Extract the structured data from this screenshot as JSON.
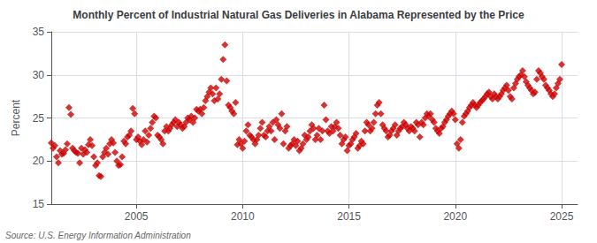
{
  "chart_data": {
    "type": "scatter",
    "title": "Monthly Percent of Industrial Natural Gas Deliveries in Alabama Represented by the Price",
    "ylabel": "Percent",
    "source": "Source: U.S. Energy Information Administration",
    "xlim": [
      2001.0,
      2025.75
    ],
    "xticks": [
      2005,
      2010,
      2015,
      2020,
      2025
    ],
    "ylim": [
      15,
      35
    ],
    "yticks": [
      15,
      20,
      25,
      30,
      35
    ],
    "grid": true,
    "color": "#cc0000",
    "marker": "diamond",
    "x": [
      2001.0,
      2001.083,
      2001.167,
      2001.25,
      2001.333,
      2001.417,
      2001.5,
      2001.583,
      2001.667,
      2001.75,
      2001.833,
      2001.917,
      2002.0,
      2002.083,
      2002.167,
      2002.25,
      2002.333,
      2002.417,
      2002.5,
      2002.583,
      2002.667,
      2002.75,
      2002.833,
      2002.917,
      2003.0,
      2003.083,
      2003.167,
      2003.25,
      2003.333,
      2003.417,
      2003.5,
      2003.583,
      2003.667,
      2003.75,
      2003.833,
      2003.917,
      2004.0,
      2004.083,
      2004.167,
      2004.25,
      2004.333,
      2004.417,
      2004.5,
      2004.583,
      2004.667,
      2004.75,
      2004.833,
      2004.917,
      2005.0,
      2005.083,
      2005.167,
      2005.25,
      2005.333,
      2005.417,
      2005.5,
      2005.583,
      2005.667,
      2005.75,
      2005.833,
      2005.917,
      2006.0,
      2006.083,
      2006.167,
      2006.25,
      2006.333,
      2006.417,
      2006.5,
      2006.583,
      2006.667,
      2006.75,
      2006.833,
      2006.917,
      2007.0,
      2007.083,
      2007.167,
      2007.25,
      2007.333,
      2007.417,
      2007.5,
      2007.583,
      2007.667,
      2007.75,
      2007.833,
      2007.917,
      2008.0,
      2008.083,
      2008.167,
      2008.25,
      2008.333,
      2008.417,
      2008.5,
      2008.583,
      2008.667,
      2008.75,
      2008.833,
      2008.917,
      2009.0,
      2009.083,
      2009.167,
      2009.25,
      2009.333,
      2009.417,
      2009.5,
      2009.583,
      2009.667,
      2009.75,
      2009.833,
      2009.917,
      2010.0,
      2010.083,
      2010.167,
      2010.25,
      2010.333,
      2010.417,
      2010.5,
      2010.583,
      2010.667,
      2010.75,
      2010.833,
      2010.917,
      2011.0,
      2011.083,
      2011.167,
      2011.25,
      2011.333,
      2011.417,
      2011.5,
      2011.583,
      2011.667,
      2011.75,
      2011.833,
      2011.917,
      2012.0,
      2012.083,
      2012.167,
      2012.25,
      2012.333,
      2012.417,
      2012.5,
      2012.583,
      2012.667,
      2012.75,
      2012.833,
      2012.917,
      2013.0,
      2013.083,
      2013.167,
      2013.25,
      2013.333,
      2013.417,
      2013.5,
      2013.583,
      2013.667,
      2013.75,
      2013.833,
      2013.917,
      2014.0,
      2014.083,
      2014.167,
      2014.25,
      2014.333,
      2014.417,
      2014.5,
      2014.583,
      2014.667,
      2014.75,
      2014.833,
      2014.917,
      2015.0,
      2015.083,
      2015.167,
      2015.25,
      2015.333,
      2015.417,
      2015.5,
      2015.583,
      2015.667,
      2015.75,
      2015.833,
      2015.917,
      2016.0,
      2016.083,
      2016.167,
      2016.25,
      2016.333,
      2016.417,
      2016.5,
      2016.583,
      2016.667,
      2016.75,
      2016.833,
      2016.917,
      2017.0,
      2017.083,
      2017.167,
      2017.25,
      2017.333,
      2017.417,
      2017.5,
      2017.583,
      2017.667,
      2017.75,
      2017.833,
      2017.917,
      2018.0,
      2018.083,
      2018.167,
      2018.25,
      2018.333,
      2018.417,
      2018.5,
      2018.583,
      2018.667,
      2018.75,
      2018.833,
      2018.917,
      2019.0,
      2019.083,
      2019.167,
      2019.25,
      2019.333,
      2019.417,
      2019.5,
      2019.583,
      2019.667,
      2019.75,
      2019.833,
      2019.917,
      2020.0,
      2020.083,
      2020.167,
      2020.25,
      2020.333,
      2020.417,
      2020.5,
      2020.583,
      2020.667,
      2020.75,
      2020.833,
      2020.917,
      2021.0,
      2021.083,
      2021.167,
      2021.25,
      2021.333,
      2021.417,
      2021.5,
      2021.583,
      2021.667,
      2021.75,
      2021.833,
      2021.917,
      2022.0,
      2022.083,
      2022.167,
      2022.25,
      2022.333,
      2022.417,
      2022.5,
      2022.583,
      2022.667,
      2022.75,
      2022.833,
      2022.917,
      2023.0,
      2023.083,
      2023.167,
      2023.25,
      2023.333,
      2023.417,
      2023.5,
      2023.583,
      2023.667,
      2023.75,
      2023.833,
      2023.917,
      2024.0,
      2024.083,
      2024.167,
      2024.25,
      2024.333,
      2024.417,
      2024.5,
      2024.583,
      2024.667,
      2024.75,
      2024.833,
      2024.917,
      2025.0
    ],
    "values": [
      22.1,
      21.5,
      21.8,
      20.5,
      19.8,
      21.2,
      20.8,
      20.9,
      21.3,
      22.0,
      26.2,
      25.4,
      21.5,
      21.2,
      21.0,
      20.9,
      19.8,
      21.5,
      20.8,
      21.3,
      21.0,
      21.9,
      22.5,
      21.8,
      20.5,
      19.5,
      19.8,
      18.3,
      18.2,
      20.5,
      21.0,
      21.5,
      20.8,
      22.0,
      22.5,
      22.1,
      21.0,
      20.0,
      19.5,
      19.6,
      20.5,
      22.3,
      22.0,
      22.8,
      23.0,
      23.5,
      26.1,
      25.5,
      22.5,
      22.8,
      22.3,
      21.9,
      22.5,
      23.5,
      22.2,
      23.0,
      23.8,
      24.5,
      25.2,
      25.0,
      23.0,
      22.8,
      22.5,
      22.0,
      23.5,
      24.0,
      23.5,
      23.8,
      24.2,
      24.5,
      24.8,
      24.0,
      24.5,
      24.2,
      23.8,
      24.0,
      24.5,
      25.0,
      24.8,
      25.2,
      24.5,
      25.0,
      26.0,
      25.8,
      26.0,
      25.5,
      26.2,
      27.0,
      27.5,
      28.0,
      28.5,
      27.8,
      27.0,
      28.5,
      27.2,
      27.8,
      29.5,
      31.8,
      33.5,
      29.3,
      26.5,
      26.2,
      25.8,
      25.5,
      26.8,
      21.9,
      22.5,
      22.0,
      21.5,
      22.3,
      23.5,
      24.2,
      23.0,
      22.8,
      22.5,
      22.0,
      22.5,
      23.0,
      23.8,
      24.5,
      23.0,
      22.8,
      23.5,
      24.0,
      23.5,
      24.5,
      22.5,
      24.8,
      24.2,
      23.8,
      25.5,
      22.0,
      23.5,
      24.0,
      21.5,
      21.8,
      22.0,
      22.5,
      21.8,
      22.3,
      21.2,
      21.5,
      22.0,
      23.0,
      22.5,
      22.8,
      23.5,
      24.2,
      23.8,
      22.5,
      23.0,
      23.8,
      22.5,
      23.5,
      26.5,
      24.8,
      23.5,
      23.2,
      24.0,
      23.5,
      24.0,
      24.5,
      23.8,
      23.0,
      22.0,
      22.5,
      22.8,
      21.2,
      21.8,
      22.0,
      22.5,
      22.8,
      23.2,
      21.5,
      21.8,
      22.3,
      22.0,
      23.5,
      24.5,
      24.2,
      23.5,
      23.8,
      24.5,
      25.5,
      26.5,
      26.8,
      25.5,
      24.2,
      23.8,
      23.5,
      22.8,
      23.0,
      23.5,
      23.8,
      24.2,
      23.0,
      23.5,
      23.8,
      24.0,
      24.5,
      24.2,
      23.8,
      23.5,
      24.0,
      23.8,
      23.5,
      24.5,
      24.2,
      22.8,
      24.5,
      24.2,
      25.0,
      25.5,
      25.2,
      25.5,
      24.8,
      24.5,
      23.8,
      23.5,
      23.2,
      23.8,
      24.0,
      24.5,
      24.8,
      25.2,
      25.5,
      25.8,
      25.5,
      24.8,
      22.0,
      21.5,
      22.5,
      24.5,
      25.2,
      25.5,
      25.8,
      26.2,
      26.5,
      26.8,
      26.5,
      26.2,
      26.5,
      26.8,
      27.0,
      27.2,
      27.5,
      27.8,
      28.0,
      27.5,
      27.2,
      27.8,
      27.5,
      27.2,
      27.5,
      27.8,
      28.2,
      28.5,
      28.8,
      28.2,
      27.5,
      27.2,
      28.5,
      29.0,
      29.5,
      29.8,
      30.0,
      30.5,
      29.8,
      29.2,
      28.8,
      28.5,
      28.2,
      27.8,
      28.0,
      29.5,
      30.5,
      30.2,
      29.8,
      29.5,
      28.8,
      28.5,
      28.2,
      27.8,
      27.5,
      27.8,
      28.5,
      29.0,
      29.5,
      31.2
    ]
  }
}
